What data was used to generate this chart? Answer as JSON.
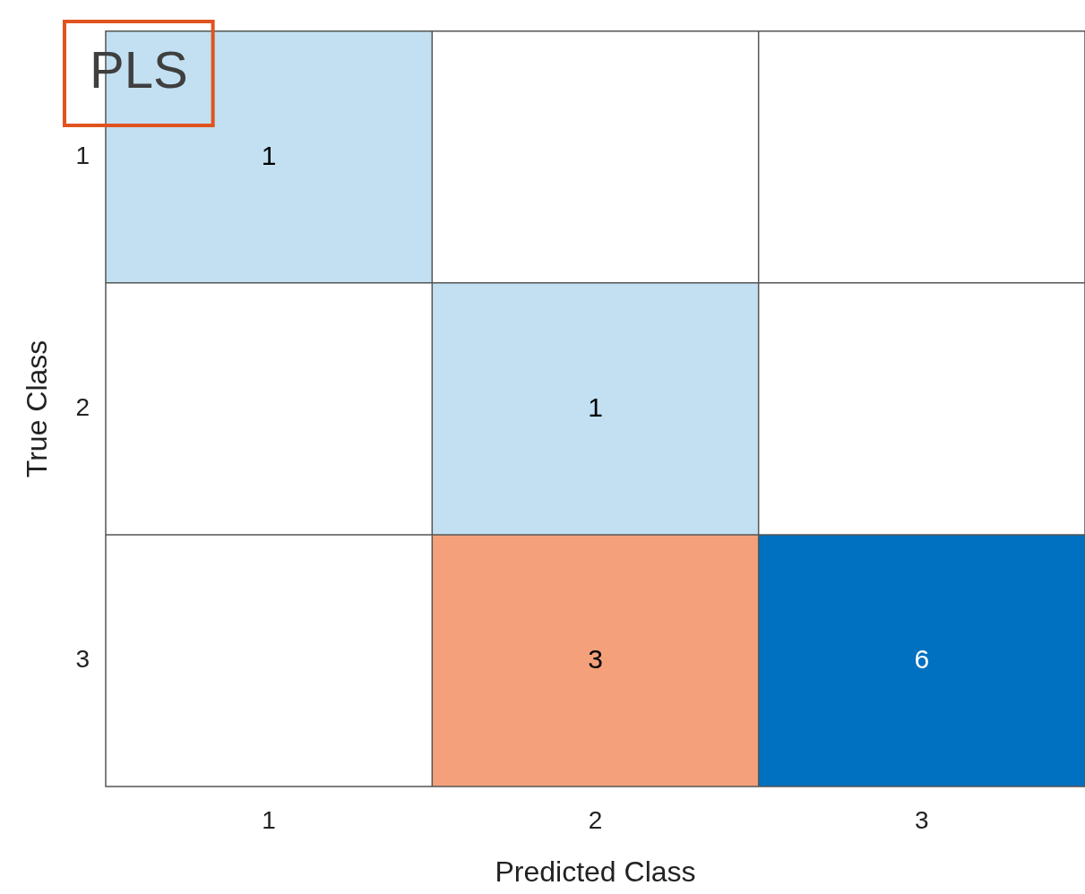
{
  "chart_data": {
    "type": "heatmap",
    "xlabel": "Predicted Class",
    "ylabel": "True Class",
    "categories": [
      "1",
      "2",
      "3"
    ],
    "y_categories": [
      "1",
      "2",
      "3"
    ],
    "cells": [
      [
        1,
        null,
        null
      ],
      [
        null,
        1,
        null
      ],
      [
        null,
        3,
        6
      ]
    ],
    "colors": [
      [
        "#c2e0f1",
        null,
        null
      ],
      [
        null,
        "#c2e0f1",
        null
      ],
      [
        null,
        "#f4a17b",
        "#0070c0"
      ]
    ],
    "data_labels": true,
    "grid": true,
    "annotations": [
      "PLS"
    ]
  }
}
